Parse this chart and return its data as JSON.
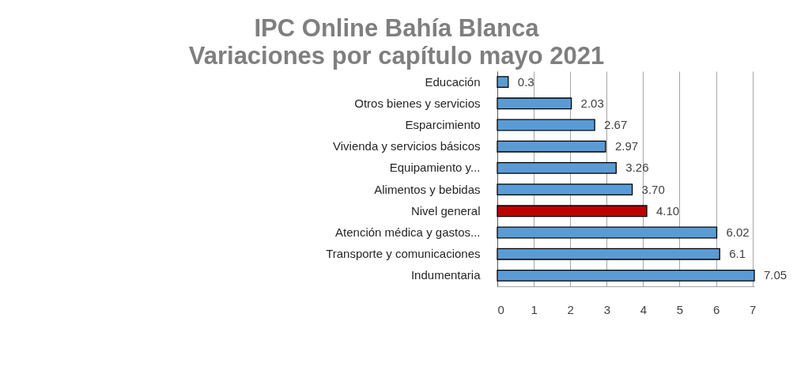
{
  "chart_data": {
    "type": "bar",
    "orientation": "horizontal",
    "title": "IPC Online Bahía Blanca\nVariaciones por capítulo mayo 2021",
    "categories": [
      "Educación",
      "Otros bienes y servicios",
      "Esparcimiento",
      "Vivienda y servicios básicos",
      "Equipamiento y...",
      "Alimentos y bebidas",
      "Nivel general",
      "Atención médica y gastos...",
      "Transporte y comunicaciones",
      "Indumentaria"
    ],
    "values": [
      0.3,
      2.03,
      2.67,
      2.97,
      3.26,
      3.7,
      4.1,
      6.02,
      6.1,
      7.05
    ],
    "value_labels": [
      "0.3",
      "2.03",
      "2.67",
      "2.97",
      "3.26",
      "3.70",
      "4.10",
      "6.02",
      "6.1",
      "7.05"
    ],
    "colors": [
      "#5b9bd5",
      "#5b9bd5",
      "#5b9bd5",
      "#5b9bd5",
      "#5b9bd5",
      "#5b9bd5",
      "#c00000",
      "#5b9bd5",
      "#5b9bd5",
      "#5b9bd5"
    ],
    "xlim": [
      0,
      7.05
    ],
    "xticks": [
      0,
      1,
      2,
      3,
      4,
      5,
      6,
      7
    ],
    "grid": "x"
  }
}
